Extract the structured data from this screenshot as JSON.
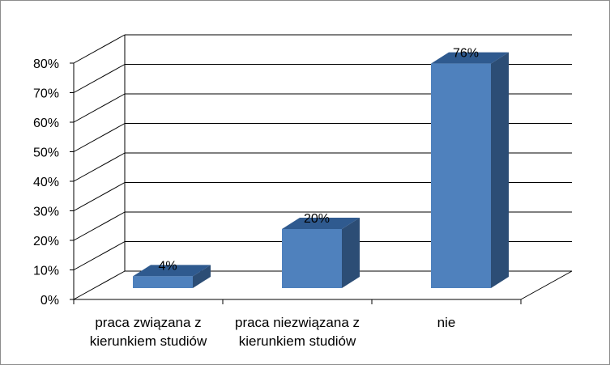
{
  "chart_data": {
    "type": "bar",
    "categories": [
      [
        "praca związana z",
        "kierunkiem studiów"
      ],
      [
        "praca niezwiązana z",
        "kierunkiem studiów"
      ],
      [
        "nie"
      ]
    ],
    "values": [
      4,
      20,
      76
    ],
    "data_labels": [
      "4%",
      "20%",
      "76%"
    ],
    "y_ticks": [
      "0%",
      "10%",
      "20%",
      "30%",
      "40%",
      "50%",
      "60%",
      "70%",
      "80%"
    ],
    "ylim": [
      0,
      80
    ],
    "grid": true,
    "legend": "none",
    "style": "3d-column",
    "colors": {
      "bar_front": "#4F81BD",
      "bar_top": "#2F5A8F",
      "bar_side": "#2C4D75",
      "gridline": "#000000"
    }
  }
}
